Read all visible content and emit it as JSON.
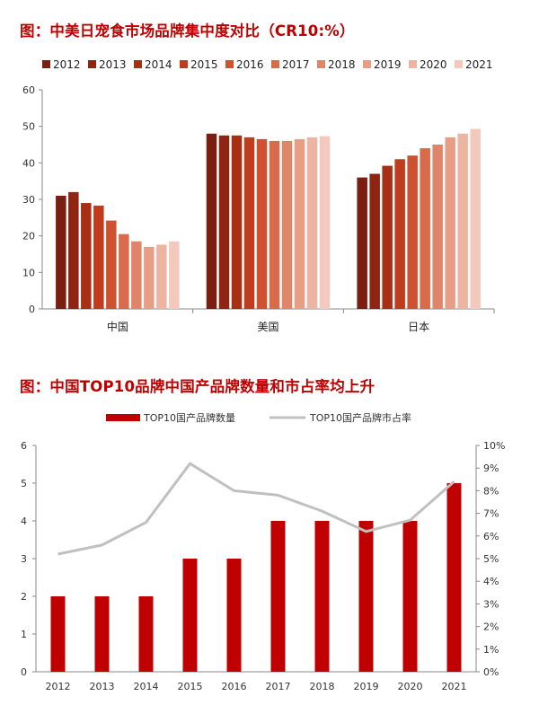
{
  "chart_data": [
    {
      "type": "bar",
      "title": "图：中美日宠食市场品牌集中度对比（CR10:%）",
      "categories": [
        "中国",
        "美国",
        "日本"
      ],
      "ylim": [
        0,
        60
      ],
      "yticks": [
        0,
        10,
        20,
        30,
        40,
        50,
        60
      ],
      "grid": false,
      "legend_position": "top",
      "series": [
        {
          "name": "2012",
          "color": "#7b1d10",
          "values": [
            31,
            48,
            36
          ]
        },
        {
          "name": "2013",
          "color": "#8f2412",
          "values": [
            32,
            47.5,
            37
          ]
        },
        {
          "name": "2014",
          "color": "#a82f13",
          "values": [
            29,
            47.5,
            39.2
          ]
        },
        {
          "name": "2015",
          "color": "#bf3d1c",
          "values": [
            28.3,
            47,
            41
          ]
        },
        {
          "name": "2016",
          "color": "#cf5230",
          "values": [
            24.2,
            46.5,
            42
          ]
        },
        {
          "name": "2017",
          "color": "#d96a4a",
          "values": [
            20.5,
            46,
            44
          ]
        },
        {
          "name": "2018",
          "color": "#e1856a",
          "values": [
            18.5,
            46,
            45
          ]
        },
        {
          "name": "2019",
          "color": "#e89d85",
          "values": [
            17,
            46.5,
            47
          ]
        },
        {
          "name": "2020",
          "color": "#eeb4a2",
          "values": [
            17.6,
            47,
            48
          ]
        },
        {
          "name": "2021",
          "color": "#f3c9bd",
          "values": [
            18.5,
            47.3,
            49.3
          ]
        }
      ]
    },
    {
      "type": "bar",
      "title": "图：中国TOP10品牌中国产品牌数量和市占率均上升",
      "categories": [
        "2012",
        "2013",
        "2014",
        "2015",
        "2016",
        "2017",
        "2018",
        "2019",
        "2020",
        "2021"
      ],
      "legend_position": "top",
      "grid": false,
      "series": [
        {
          "name": "TOP10国产品牌数量",
          "type": "bar",
          "axis": "left",
          "color": "#c00000",
          "values": [
            2,
            2,
            2,
            3,
            3,
            4,
            4,
            4,
            4,
            5
          ]
        },
        {
          "name": "TOP10国产品牌市占率",
          "type": "line",
          "axis": "right",
          "color": "#c0c0c0",
          "values": [
            5.2,
            5.6,
            6.6,
            9.2,
            8.0,
            7.8,
            7.1,
            6.2,
            6.7,
            8.4
          ]
        }
      ],
      "ylim": [
        0,
        6
      ],
      "yticks": [
        0,
        1,
        2,
        3,
        4,
        5,
        6
      ],
      "y2lim": [
        0,
        10
      ],
      "y2ticks": [
        "0%",
        "1%",
        "2%",
        "3%",
        "4%",
        "5%",
        "6%",
        "7%",
        "8%",
        "9%",
        "10%"
      ]
    }
  ]
}
